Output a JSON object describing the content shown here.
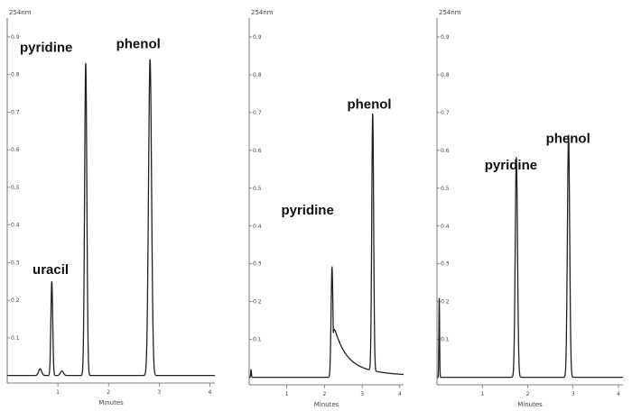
{
  "chart_data": [
    {
      "type": "line",
      "unit_label": "254nm",
      "xlabel": "Minutes",
      "xlim": [
        0,
        4.1
      ],
      "ylim": [
        -0.02,
        0.95
      ],
      "x_ticks": [
        1,
        2,
        3,
        4
      ],
      "y_ticks": [
        0.1,
        0.2,
        0.3,
        0.4,
        0.5,
        0.6,
        0.7,
        0.8,
        0.9
      ],
      "y_tick_labels": [
        "0.1",
        "0.2",
        "0.3",
        "0.4",
        "0.5",
        "0.6",
        "0.7",
        "0.8",
        "0.9"
      ],
      "peaks": [
        {
          "name": "uracil",
          "time": 0.88,
          "height": 0.25,
          "width": 0.018,
          "tail": 0
        },
        {
          "name": "pyridine",
          "time": 1.55,
          "height": 0.83,
          "width": 0.022,
          "tail": 0
        },
        {
          "name": "phenol",
          "time": 2.82,
          "height": 0.84,
          "width": 0.03,
          "tail": 0
        }
      ],
      "minor_peaks": [
        {
          "time": 0.65,
          "height": 0.018,
          "width": 0.03
        },
        {
          "time": 1.08,
          "height": 0.012,
          "width": 0.03
        }
      ],
      "annotations": [
        {
          "text": "uracil",
          "x": 0.5,
          "y": 0.27
        },
        {
          "text": "pyridine",
          "x": 0.25,
          "y": 0.86
        },
        {
          "text": "phenol",
          "x": 2.15,
          "y": 0.87
        }
      ]
    },
    {
      "type": "line",
      "unit_label": "254nm",
      "xlabel": "Minutes",
      "xlim": [
        0,
        4.1
      ],
      "ylim": [
        -0.02,
        0.95
      ],
      "x_ticks": [
        1,
        2,
        3,
        4
      ],
      "y_ticks": [
        0.1,
        0.2,
        0.3,
        0.4,
        0.5,
        0.6,
        0.7,
        0.8,
        0.9
      ],
      "y_tick_labels": [
        "0.1",
        "0.2",
        "0.3",
        "0.4",
        "0.5",
        "0.6",
        "0.7",
        "0.8",
        "0.9"
      ],
      "peaks": [
        {
          "name": "pyridine",
          "time": 2.2,
          "height": 0.29,
          "width": 0.025,
          "tail": 1
        },
        {
          "name": "phenol",
          "time": 3.28,
          "height": 0.68,
          "width": 0.025,
          "tail": 0
        }
      ],
      "minor_peaks": [
        {
          "time": 0.05,
          "height": 0.02,
          "width": 0.01
        }
      ],
      "annotations": [
        {
          "text": "pyridine",
          "x": 0.85,
          "y": 0.43
        },
        {
          "text": "phenol",
          "x": 2.6,
          "y": 0.71
        }
      ]
    },
    {
      "type": "line",
      "unit_label": "254nm",
      "xlabel": "Minutes",
      "xlim": [
        0,
        4.1
      ],
      "ylim": [
        -0.02,
        0.95
      ],
      "x_ticks": [
        1,
        2,
        3,
        4
      ],
      "y_ticks": [
        0.1,
        0.2,
        0.3,
        0.4,
        0.5,
        0.6,
        0.7,
        0.8,
        0.9
      ],
      "y_tick_labels": [
        "0.1",
        "0.2",
        "0.3",
        "0.4",
        "0.5",
        "0.6",
        "0.7",
        "0.8",
        "0.9"
      ],
      "peaks": [
        {
          "name": "pyridine",
          "time": 1.75,
          "height": 0.58,
          "width": 0.025,
          "tail": 0
        },
        {
          "name": "phenol",
          "time": 2.9,
          "height": 0.64,
          "width": 0.025,
          "tail": 0
        }
      ],
      "minor_peaks": [
        {
          "time": 0.05,
          "height": 0.21,
          "width": 0.008
        }
      ],
      "annotations": [
        {
          "text": "pyridine",
          "x": 1.05,
          "y": 0.55
        },
        {
          "text": "phenol",
          "x": 2.4,
          "y": 0.62
        }
      ]
    }
  ]
}
